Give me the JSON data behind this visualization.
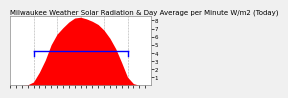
{
  "title": "Milwaukee Weather Solar Radiation & Day Average per Minute W/m2 (Today)",
  "background_color": "#f0f0f0",
  "plot_bg_color": "#ffffff",
  "bar_color": "#ff0000",
  "avg_line_color": "#0000ff",
  "ylim": [
    0,
    850
  ],
  "xlim": [
    0,
    1439
  ],
  "avg_value": 420,
  "avg_start": 240,
  "avg_end": 1200,
  "grid_color": "#aaaaaa",
  "ytick_labels": [
    "8",
    "7",
    "6",
    "5",
    "4",
    "3",
    "2",
    "1"
  ],
  "ytick_values": [
    800,
    700,
    600,
    500,
    400,
    300,
    200,
    100
  ],
  "solar_data_x": [
    0,
    60,
    120,
    180,
    240,
    300,
    360,
    420,
    480,
    540,
    600,
    660,
    720,
    780,
    840,
    900,
    960,
    1020,
    1080,
    1140,
    1200,
    1260,
    1320,
    1380,
    1439
  ],
  "solar_data_y": [
    0,
    0,
    0,
    5,
    40,
    160,
    310,
    500,
    630,
    710,
    780,
    830,
    840,
    820,
    790,
    750,
    680,
    580,
    450,
    280,
    100,
    20,
    0,
    0,
    0
  ],
  "title_fontsize": 5,
  "tick_fontsize": 4
}
